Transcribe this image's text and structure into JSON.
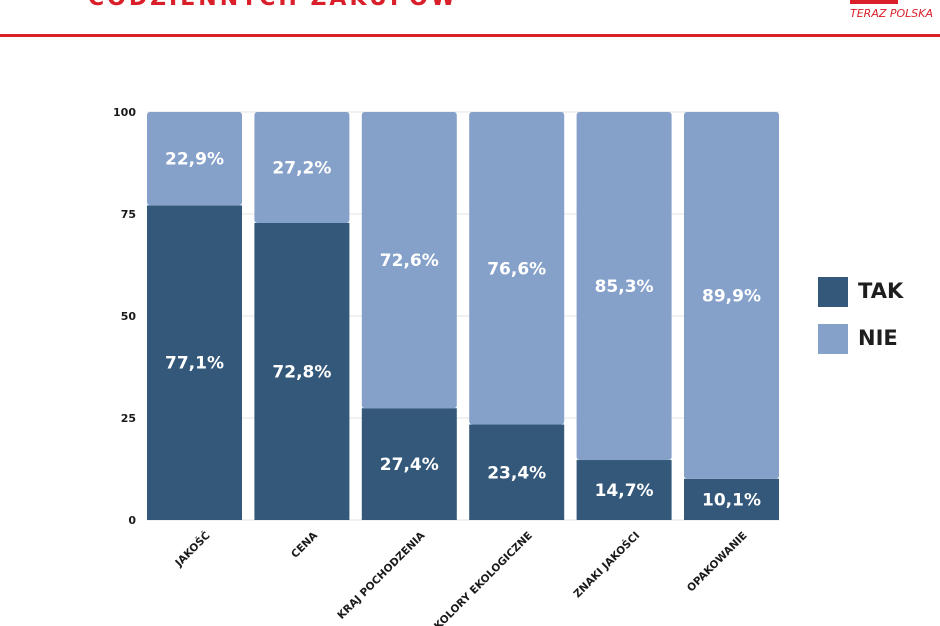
{
  "header": {
    "title": "CODZIENNYCH ZAKUPÓW",
    "logo_text": "TERAZ POLSKA"
  },
  "colors": {
    "brand": "#d9202a",
    "tak": "#33587a",
    "nie": "#86a1c9",
    "grid": "#e3e3e3"
  },
  "chart_data": {
    "type": "bar",
    "stacked": true,
    "categories": [
      "JAKOŚĆ",
      "CENA",
      "KRAJ POCHODZENIA",
      "KOLORY EKOLOGICZNE",
      "ZNAKI JAKOŚCI",
      "OPAKOWANIE"
    ],
    "series": [
      {
        "name": "TAK",
        "values": [
          77.1,
          72.8,
          27.4,
          23.4,
          14.7,
          10.1
        ],
        "labels": [
          "77,1%",
          "72,8%",
          "27,4%",
          "23,4%",
          "14,7%",
          "10,1%"
        ]
      },
      {
        "name": "NIE",
        "values": [
          22.9,
          27.2,
          72.6,
          76.6,
          85.3,
          89.9
        ],
        "labels": [
          "22,9%",
          "27,2%",
          "72,6%",
          "76,6%",
          "85,3%",
          "89,9%"
        ]
      }
    ],
    "yticks": [
      "0",
      "25",
      "50",
      "75",
      "100"
    ],
    "ylim": [
      0,
      100
    ],
    "grid": true,
    "legend_position": "right"
  }
}
